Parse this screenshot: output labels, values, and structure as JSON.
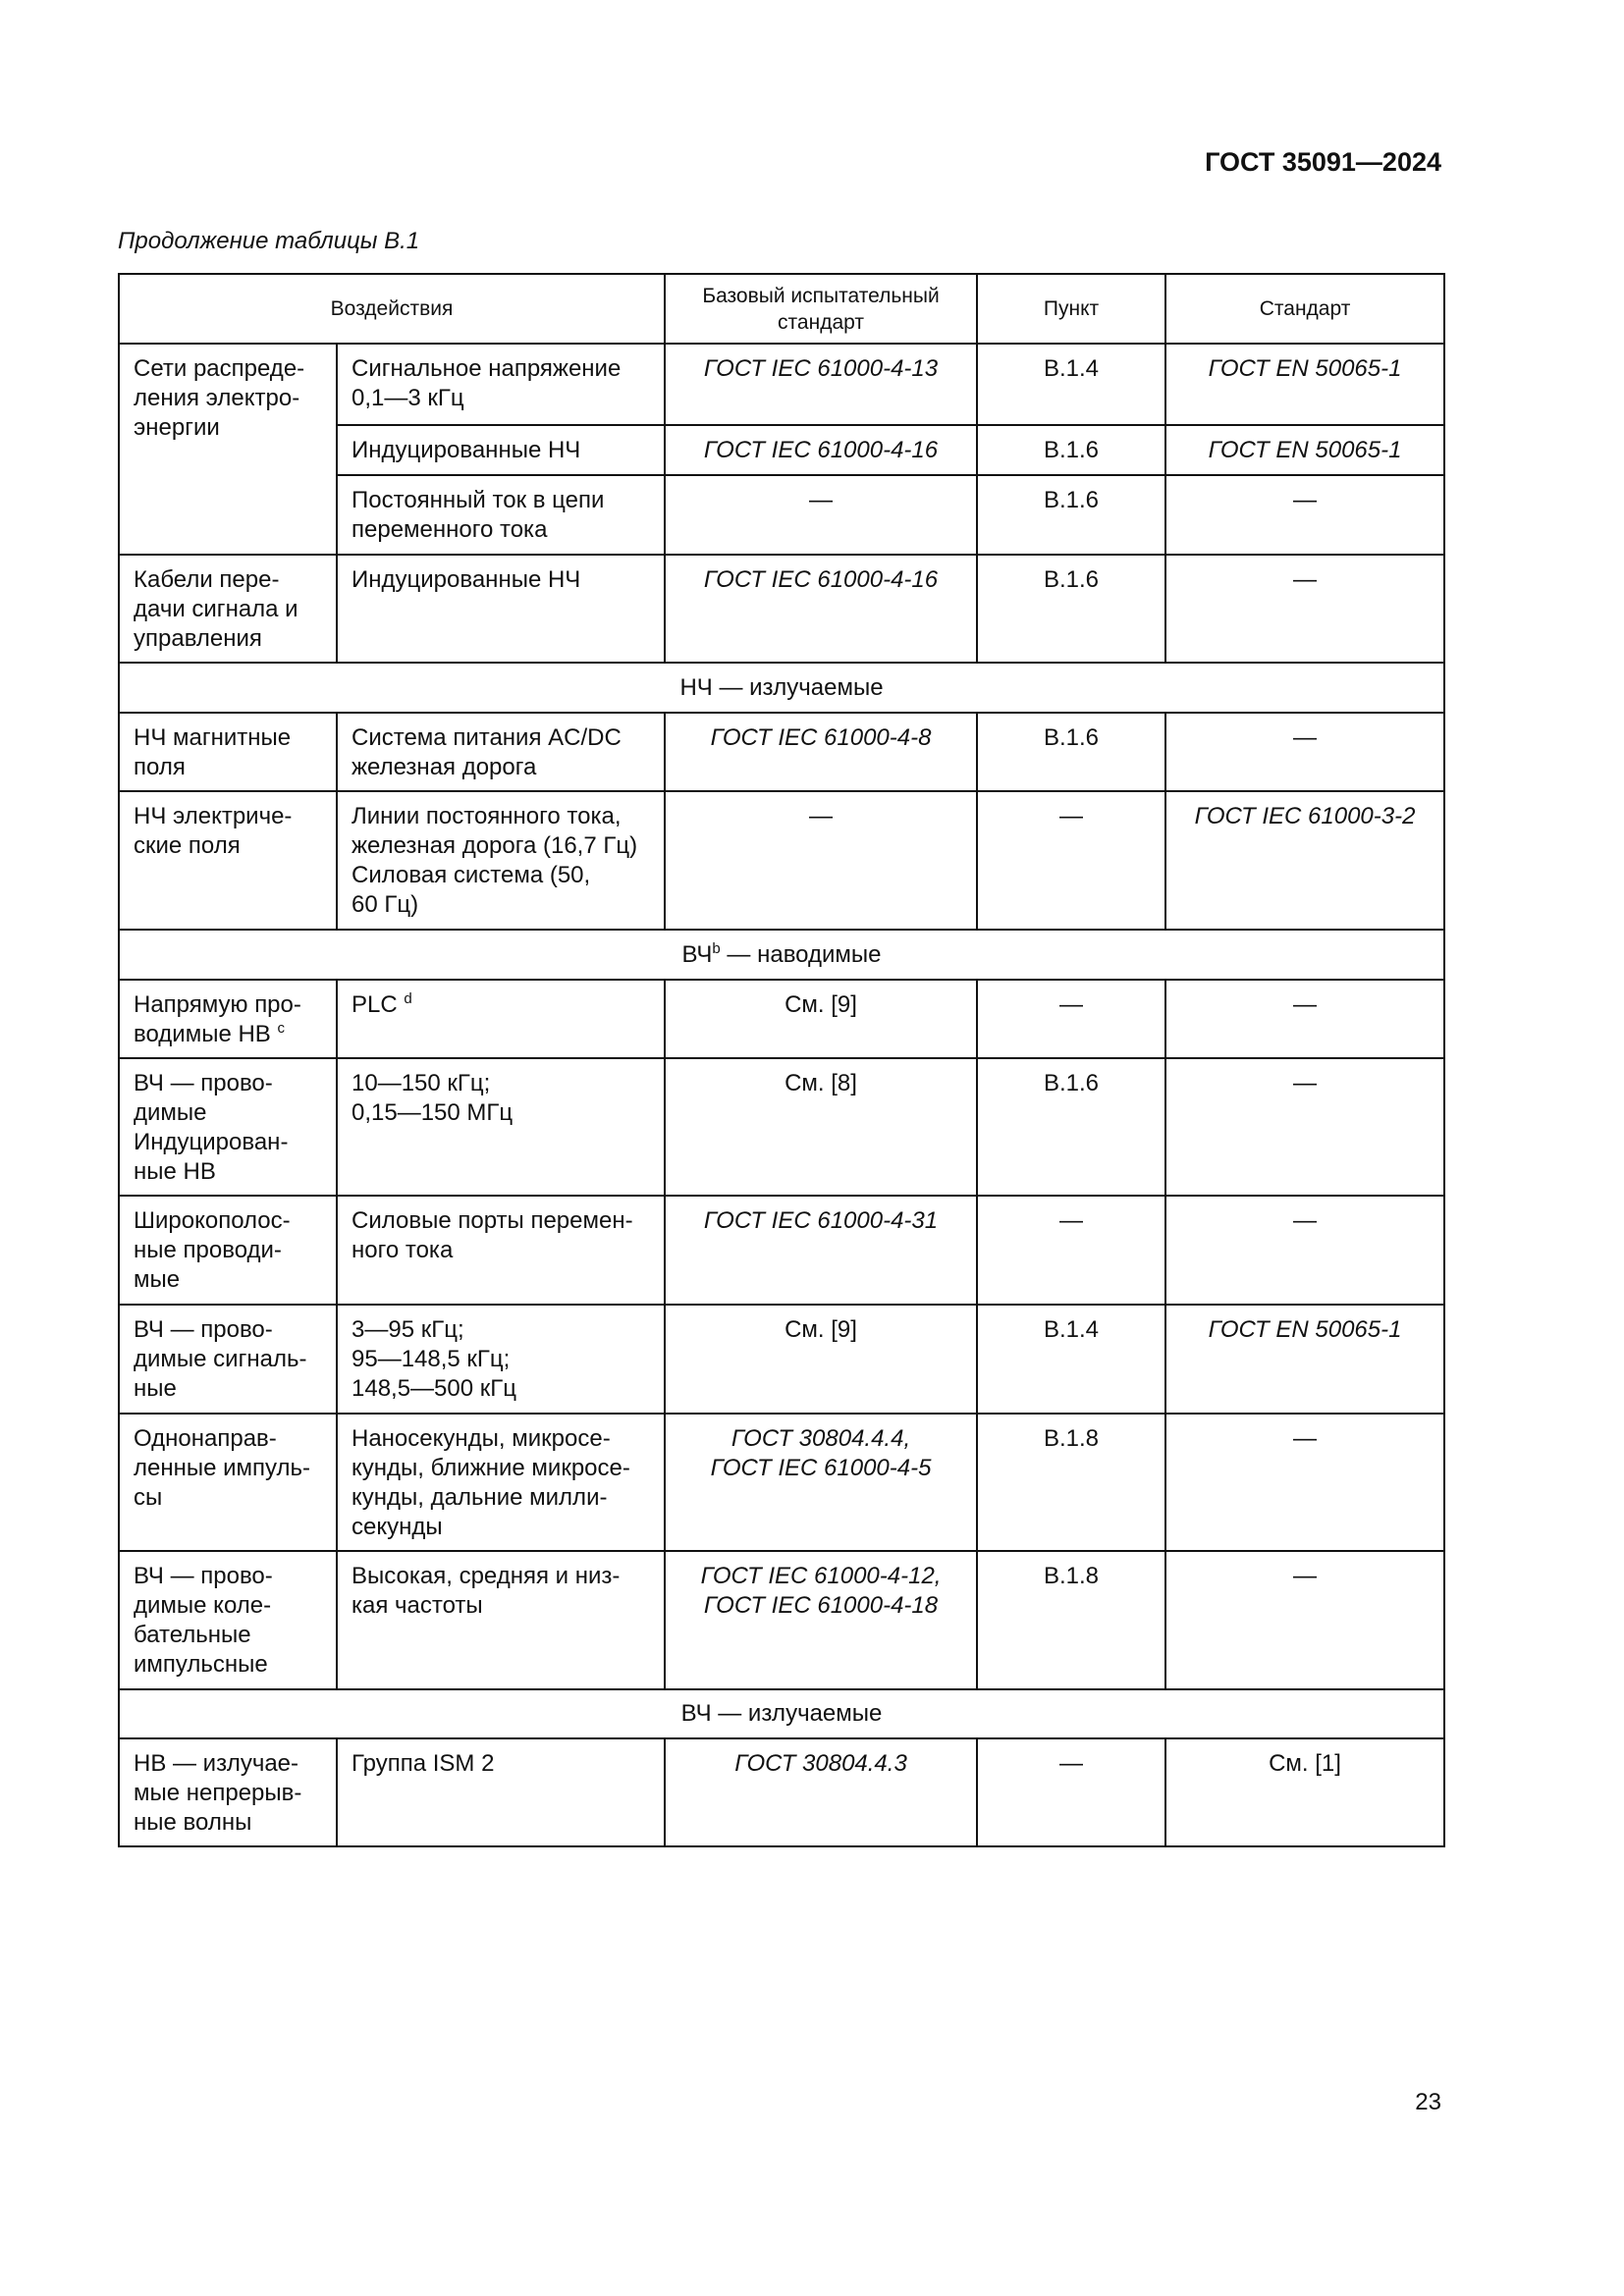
{
  "header": {
    "doc_id": "ГОСТ 35091—2024"
  },
  "caption": "Продолжение таблицы В.1",
  "table": {
    "columns": [
      "Воздействия",
      "Базовый испытательный\nстандарт",
      "Пункт",
      "Стандарт"
    ],
    "rows": [
      {
        "type": "data",
        "group": "Сети распреде-\nления электро-\nэнергии",
        "group_rowspan": 3,
        "effect": "Сигнальное напряжение\n0,1—3 кГц",
        "base": "ГОСТ IEC 61000-4-13",
        "base_italic": true,
        "clause": "B.1.4",
        "standard": "ГОСТ EN 50065-1",
        "standard_italic": true
      },
      {
        "type": "data",
        "effect": "Индуцированные НЧ",
        "base": "ГОСТ IEC 61000-4-16",
        "base_italic": true,
        "clause": "B.1.6",
        "standard": "ГОСТ EN 50065-1",
        "standard_italic": true
      },
      {
        "type": "data",
        "effect": "Постоянный ток в цепи\nпеременного тока",
        "base": "—",
        "clause": "B.1.6",
        "standard": "—"
      },
      {
        "type": "data",
        "group": "Кабели пере-\nдачи сигнала и\nуправления",
        "group_rowspan": 1,
        "effect": "Индуцированные НЧ",
        "base": "ГОСТ IEC 61000-4-16",
        "base_italic": true,
        "clause": "B.1.6",
        "standard": "—"
      },
      {
        "type": "section",
        "text": "НЧ — излучаемые"
      },
      {
        "type": "data",
        "group": "НЧ магнитные\nполя",
        "group_rowspan": 1,
        "effect": "Система питания AC/DC\nжелезная дорога",
        "base": "ГОСТ IEC 61000-4-8",
        "base_italic": true,
        "clause": "B.1.6",
        "standard": "—"
      },
      {
        "type": "data",
        "group": "НЧ электриче-\nские поля",
        "group_rowspan": 1,
        "effect": "Линии постоянного тока,\nжелезная дорога (16,7 Гц)\nСиловая система (50,\n60 Гц)",
        "base": "—",
        "clause": "—",
        "standard": "ГОСТ IEC 61000-3-2",
        "standard_italic": true
      },
      {
        "type": "section",
        "text": "ВЧ",
        "sup": "b",
        "text_after": " — наводимые"
      },
      {
        "type": "data",
        "group": "Напрямую про-\nводимые НВ ",
        "group_sup": "c",
        "group_rowspan": 1,
        "effect": "PLC ",
        "effect_sup": "d",
        "base": "См. [9]",
        "clause": "—",
        "standard": "—"
      },
      {
        "type": "data",
        "group": "ВЧ — прово-\nдимые\nИндуцирован-\nные НВ",
        "group_rowspan": 1,
        "effect": "10—150 кГц;\n0,15—150 МГц",
        "base": "См. [8]",
        "clause": "B.1.6",
        "standard": "—"
      },
      {
        "type": "data",
        "group": "Широкополос-\nные проводи-\nмые",
        "group_rowspan": 1,
        "effect": "Силовые порты перемен-\nного тока",
        "base": "ГОСТ IEC 61000-4-31",
        "base_italic": true,
        "clause": "—",
        "standard": "—"
      },
      {
        "type": "data",
        "group": "ВЧ — прово-\nдимые сигналь-\nные",
        "group_rowspan": 1,
        "effect": "3—95 кГц;\n95—148,5 кГц;\n148,5—500 кГц",
        "base": "См. [9]",
        "clause": "B.1.4",
        "standard": "ГОСТ EN 50065-1",
        "standard_italic": true
      },
      {
        "type": "data",
        "group": "Однонаправ-\nленные импуль-\nсы",
        "group_rowspan": 1,
        "effect": "Наносекунды, микросе-\nкунды, ближние микросе-\nкунды, дальние милли-\nсекунды",
        "base": "ГОСТ 30804.4.4,\nГОСТ IEC 61000-4-5",
        "base_italic": true,
        "clause": "B.1.8",
        "standard": "—"
      },
      {
        "type": "data",
        "group": "ВЧ — прово-\nдимые коле-\nбательные\nимпульсные",
        "group_rowspan": 1,
        "effect": "Высокая, средняя и низ-\nкая частоты",
        "base": "ГОСТ IEC 61000-4-12,\nГОСТ IEC 61000-4-18",
        "base_italic": true,
        "clause": "B.1.8",
        "standard": "—"
      },
      {
        "type": "section",
        "text": "ВЧ — излучаемые"
      },
      {
        "type": "data",
        "group": "НВ — излучае-\nмые непрерыв-\nные волны",
        "group_rowspan": 1,
        "effect": "Группа ISM 2",
        "base": "ГОСТ 30804.4.3",
        "base_italic": true,
        "clause": "—",
        "standard": "См. [1]"
      }
    ]
  },
  "page_number": "23"
}
